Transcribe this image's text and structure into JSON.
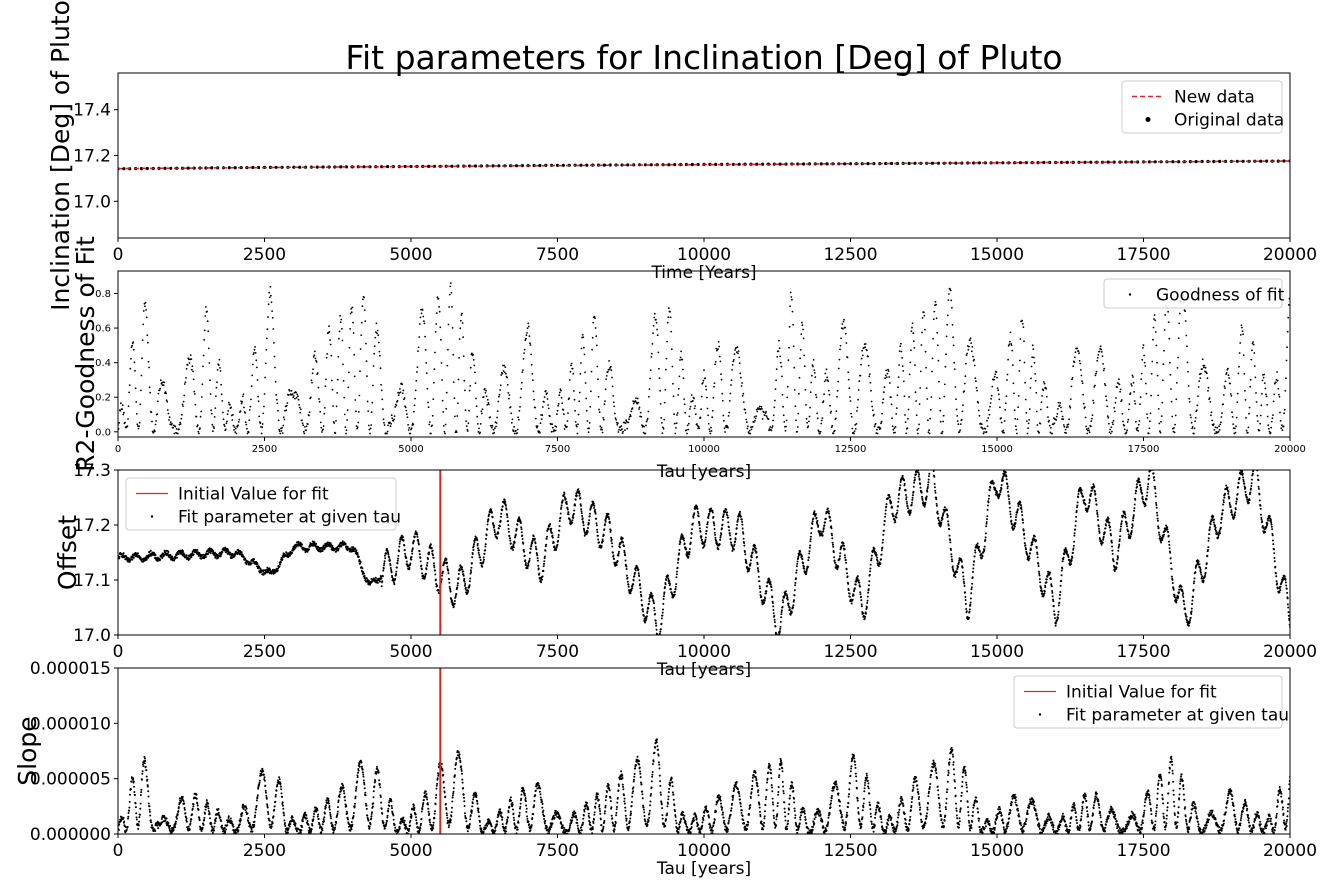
{
  "title": "Fit parameters for Inclination [Deg] of Pluto",
  "colors": {
    "fit": "#d62728",
    "marker": "#000000",
    "axes": "#000000"
  },
  "chart_data": [
    {
      "type": "line",
      "id": "inclination",
      "xlabel": "Time [Years]",
      "ylabel": "Inclination [Deg] of Pluto",
      "xlim": [
        0,
        20000
      ],
      "ylim": [
        16.84,
        17.56
      ],
      "xticks": [
        "0",
        "2500",
        "5000",
        "7500",
        "10000",
        "12500",
        "15000",
        "17500",
        "20000"
      ],
      "yticks": [
        "17.0",
        "17.2",
        "17.4"
      ],
      "legend_position": "top-right",
      "series": [
        {
          "name": "New data",
          "style": "dashed-line",
          "x": [
            0,
            5000,
            10000,
            15000,
            20000
          ],
          "y": [
            17.143,
            17.152,
            17.16,
            17.168,
            17.176
          ]
        },
        {
          "name": "Original data",
          "style": "points",
          "x": [
            0,
            2500,
            5000,
            7500,
            10000,
            12500,
            15000,
            17500,
            20000
          ],
          "y": [
            17.142,
            17.148,
            17.152,
            17.157,
            17.161,
            17.164,
            17.168,
            17.172,
            17.176
          ]
        }
      ]
    },
    {
      "type": "scatter",
      "id": "goodness",
      "xlabel": "Tau [years]",
      "ylabel": "R2-Goodness of Fit",
      "xlim": [
        0,
        20000
      ],
      "ylim": [
        -0.03,
        0.93
      ],
      "xticks": [
        "0",
        "2500",
        "5000",
        "7500",
        "10000",
        "12500",
        "15000",
        "17500",
        "20000"
      ],
      "yticks": [
        "0.0",
        "0.2",
        "0.4",
        "0.6",
        "0.8"
      ],
      "legend_position": "top-right",
      "series": [
        {
          "name": "Goodness of fit",
          "x": [
            0,
            400,
            900,
            1500,
            2000,
            2600,
            3000,
            3600,
            4300,
            4700,
            5100,
            5700,
            6300,
            7000,
            7400,
            8100,
            8700,
            9300,
            9800,
            10400,
            11000,
            11500,
            12000,
            12600,
            12900,
            13600,
            14300,
            14800,
            15400,
            16000,
            16500,
            17200,
            17800,
            18300,
            18700,
            19200,
            19700,
            20000
          ],
          "y": [
            0.05,
            0.82,
            0.1,
            0.72,
            0.05,
            0.82,
            0.2,
            0.6,
            0.82,
            0.1,
            0.68,
            0.86,
            0.2,
            0.62,
            0.1,
            0.7,
            0.05,
            0.86,
            0.2,
            0.62,
            0.1,
            0.82,
            0.25,
            0.86,
            0.2,
            0.65,
            0.84,
            0.2,
            0.7,
            0.1,
            0.65,
            0.2,
            0.75,
            0.85,
            0.1,
            0.65,
            0.2,
            0.78
          ]
        }
      ]
    },
    {
      "type": "scatter",
      "id": "offset",
      "xlabel": "Tau [years]",
      "ylabel": "Offset",
      "xlim": [
        0,
        20000
      ],
      "ylim": [
        17.0,
        17.3
      ],
      "xticks": [
        "0",
        "2500",
        "5000",
        "7500",
        "10000",
        "12500",
        "15000",
        "17500",
        "20000"
      ],
      "yticks": [
        "17.0",
        "17.1",
        "17.2",
        "17.3"
      ],
      "vline": 5500,
      "legend_position": "top-left",
      "series": [
        {
          "name": "Initial Value for fit",
          "style": "vertical-line",
          "x": [
            5500
          ]
        },
        {
          "name": "Fit parameter at given tau",
          "x": [
            0,
            1000,
            2000,
            2600,
            3000,
            4000,
            4300,
            5000,
            5800,
            6500,
            7200,
            7700,
            8400,
            9200,
            9800,
            10600,
            11300,
            12000,
            12700,
            13200,
            13900,
            14500,
            15000,
            15500,
            16000,
            16500,
            17000,
            17600,
            18200,
            18800,
            19400,
            20000
          ],
          "y": [
            17.14,
            17.145,
            17.15,
            17.11,
            17.16,
            17.16,
            17.09,
            17.16,
            17.08,
            17.22,
            17.13,
            17.24,
            17.18,
            17.02,
            17.2,
            17.19,
            17.02,
            17.22,
            17.05,
            17.24,
            17.28,
            17.06,
            17.29,
            17.18,
            17.05,
            17.27,
            17.15,
            17.29,
            17.03,
            17.22,
            17.29,
            17.03
          ]
        }
      ]
    },
    {
      "type": "scatter",
      "id": "slope",
      "xlabel": "Tau [years]",
      "ylabel": "Slope",
      "xlim": [
        0,
        20000
      ],
      "ylim": [
        0,
        1.5e-05
      ],
      "xticks": [
        "0",
        "2500",
        "5000",
        "7500",
        "10000",
        "12500",
        "15000",
        "17500",
        "20000"
      ],
      "yticks": [
        "0.000000",
        "0.000005",
        "0.000010",
        "0.000015"
      ],
      "vline": 5500,
      "legend_position": "top-right",
      "series": [
        {
          "name": "Initial Value for fit",
          "style": "vertical-line",
          "x": [
            5500
          ]
        },
        {
          "name": "Fit parameter at given tau",
          "x": [
            0,
            400,
            700,
            1200,
            2000,
            2600,
            3000,
            3700,
            4300,
            4800,
            5300,
            5700,
            6300,
            7100,
            7600,
            8300,
            9200,
            9700,
            10400,
            11300,
            11800,
            12600,
            13100,
            13600,
            14300,
            14800,
            15400,
            16000,
            16600,
            17200,
            18000,
            18500,
            19000,
            19600,
            20000
          ],
          "y": [
            5e-07,
            8e-06,
            1e-06,
            4e-06,
            1e-06,
            7.2e-06,
            1e-06,
            3.5e-06,
            7.5e-06,
            1e-06,
            4e-06,
            8.8e-06,
            1e-06,
            5e-06,
            1e-06,
            4e-06,
            8.5e-06,
            1e-06,
            4e-06,
            6.8e-06,
            1e-06,
            7.5e-06,
            1e-06,
            5e-06,
            8e-06,
            1e-06,
            4e-06,
            1e-06,
            4e-06,
            1e-06,
            7e-06,
            1e-06,
            4e-06,
            1e-06,
            6.5e-06
          ]
        }
      ]
    }
  ]
}
